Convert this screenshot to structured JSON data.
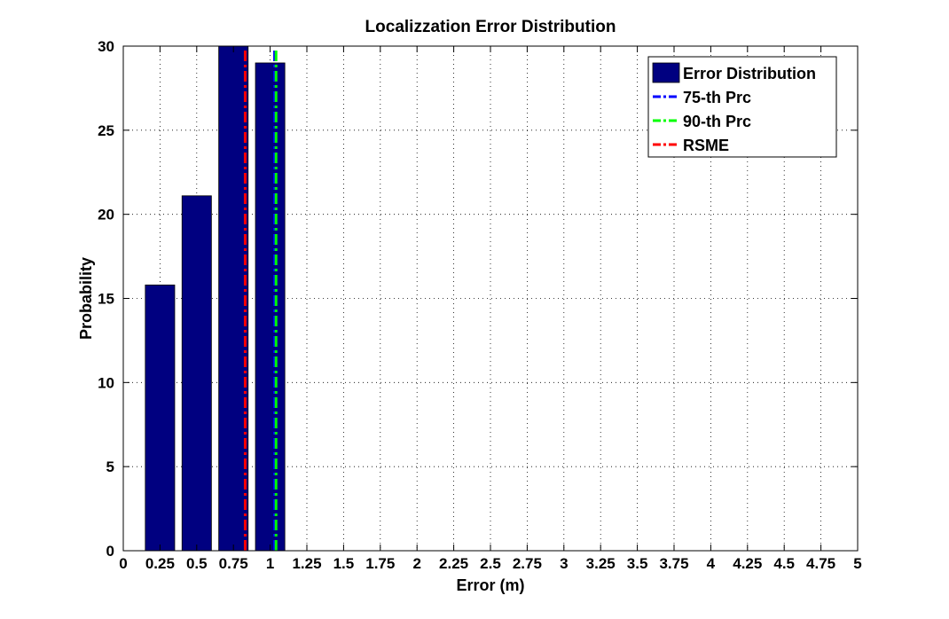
{
  "chart_data": {
    "type": "bar",
    "title": "Localizzation Error Distribution",
    "xlabel": "Error (m)",
    "ylabel": "Probability",
    "xlim": [
      0,
      5
    ],
    "ylim": [
      0,
      30
    ],
    "xticks": [
      0,
      0.25,
      0.5,
      0.75,
      1,
      1.25,
      1.5,
      1.75,
      2,
      2.25,
      2.5,
      2.75,
      3,
      3.25,
      3.5,
      3.75,
      4,
      4.25,
      4.5,
      4.75,
      5
    ],
    "xtick_labels": [
      "0",
      "0.25",
      "0.5",
      "0.75",
      "1",
      "1.25",
      "1.5",
      "1.75",
      "2",
      "2.25",
      "2.5",
      "2.75",
      "3",
      "3.25",
      "3.5",
      "3.75",
      "4",
      "4.25",
      "4.5",
      "4.75",
      "5"
    ],
    "yticks": [
      0,
      5,
      10,
      15,
      20,
      25,
      30
    ],
    "ytick_labels": [
      "0",
      "5",
      "10",
      "15",
      "20",
      "25",
      "30"
    ],
    "grid": true,
    "legend_position": "top-right",
    "series": [
      {
        "name": "Error Distribution",
        "kind": "bar",
        "color": "#000080",
        "x": [
          0.25,
          0.5,
          0.75,
          1.0
        ],
        "values": [
          15.8,
          21.1,
          30.0,
          29.0
        ]
      }
    ],
    "lines": [
      {
        "name": "75-th Prc",
        "kind": "vline",
        "x": 1.03,
        "color": "#0000ff",
        "style": "dash-dot"
      },
      {
        "name": "90-th Prc",
        "kind": "vline",
        "x": 1.04,
        "color": "#00ff00",
        "style": "dash-dot"
      },
      {
        "name": "RSME",
        "kind": "vline",
        "x": 0.83,
        "color": "#ff0000",
        "style": "dash-dot"
      }
    ],
    "legend": [
      {
        "label": "Error Distribution",
        "kind": "patch",
        "color": "#000080"
      },
      {
        "label": "75-th Prc",
        "kind": "line",
        "color": "#0000ff"
      },
      {
        "label": "90-th Prc",
        "kind": "line",
        "color": "#00ff00"
      },
      {
        "label": "RSME",
        "kind": "line",
        "color": "#ff0000"
      }
    ]
  }
}
